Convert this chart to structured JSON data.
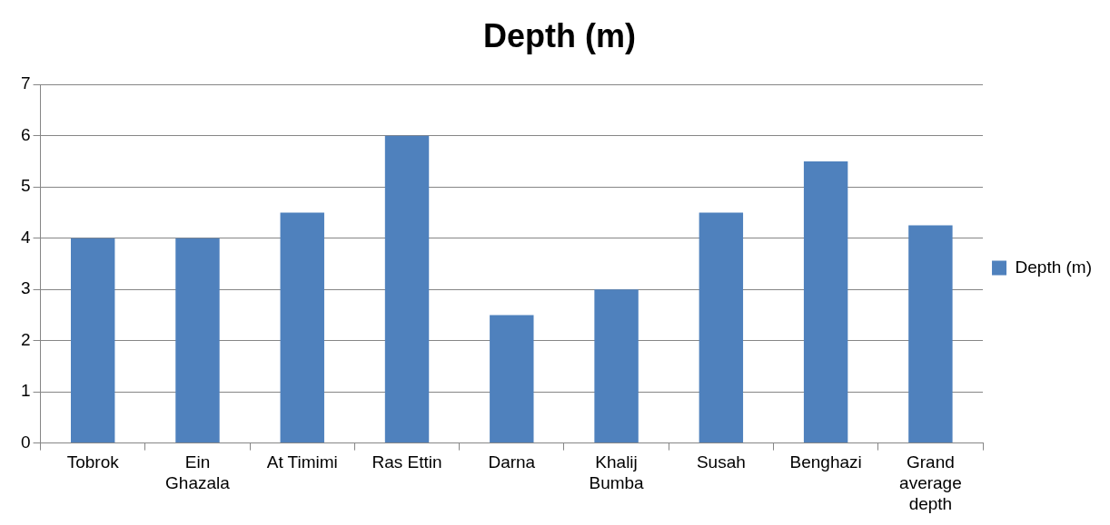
{
  "chart_data": {
    "type": "bar",
    "title": "Depth (m)",
    "categories": [
      "Tobrok",
      "Ein Ghazala",
      "At Timimi",
      "Ras Ettin",
      "Darna",
      "Khalij Bumba",
      "Susah",
      "Benghazi",
      "Grand average depth"
    ],
    "series": [
      {
        "name": "Depth (m)",
        "color": "#4f81bd",
        "values": [
          4,
          4,
          4.5,
          6,
          2.5,
          3,
          4.5,
          5.5,
          4.25
        ]
      }
    ],
    "ylim": [
      0,
      7
    ],
    "yticks": [
      0,
      1,
      2,
      3,
      4,
      5,
      6,
      7
    ],
    "grid": "y",
    "legend": "right"
  }
}
